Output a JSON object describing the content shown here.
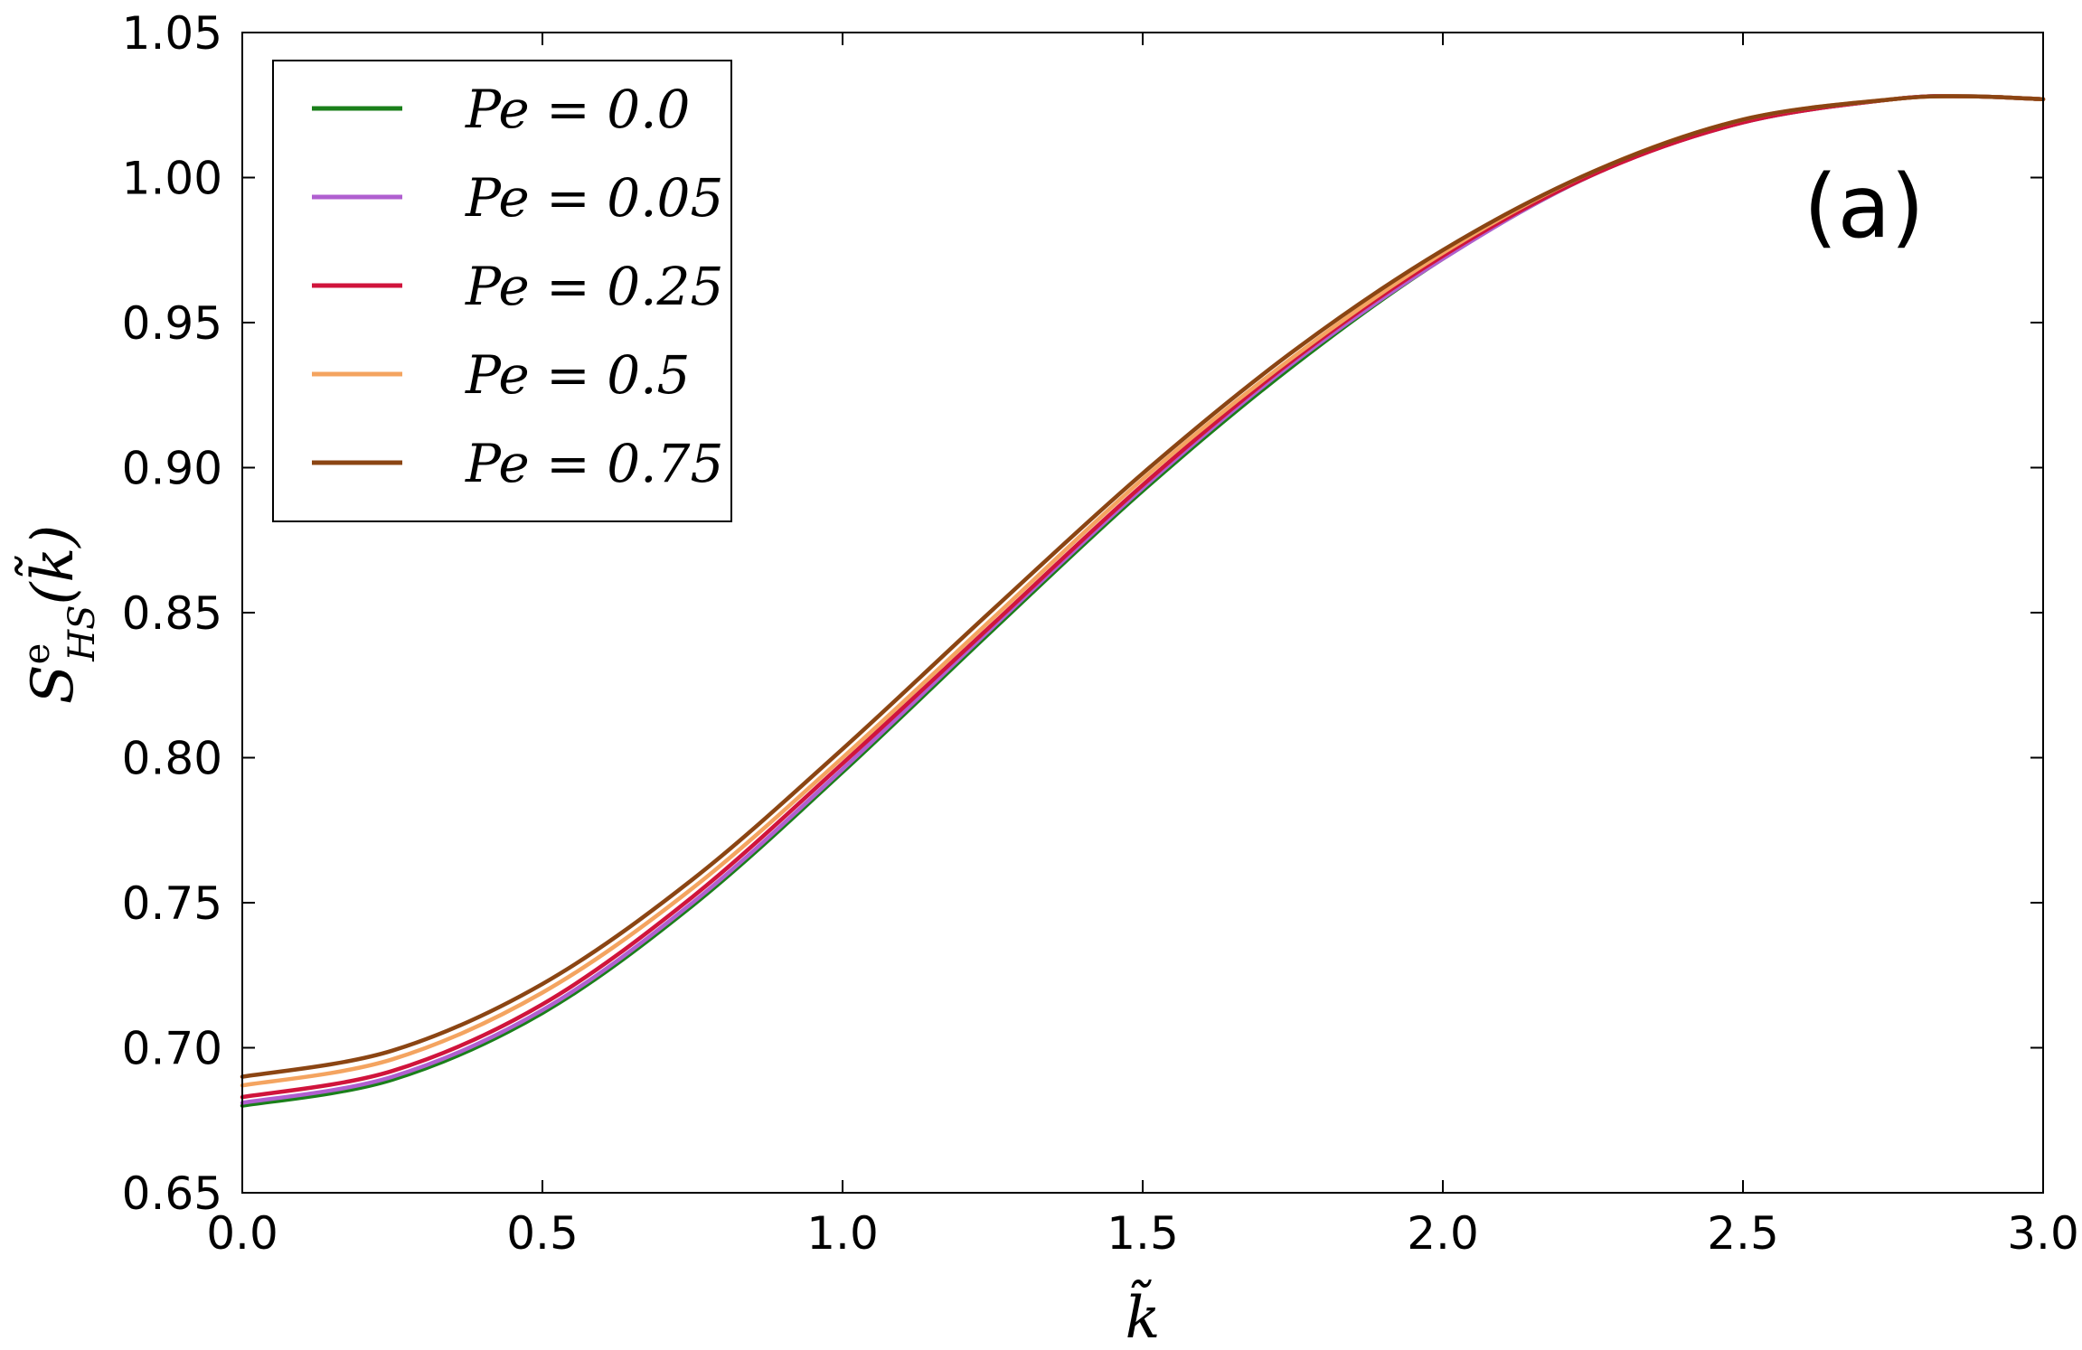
{
  "chart_data": {
    "type": "line",
    "title": "",
    "xlabel": "k̃",
    "ylabel": "S",
    "ylabel_sup": "e",
    "ylabel_sub": "HS",
    "ylabel_arg": "(k̃)",
    "panel_label": "(a)",
    "xlim": [
      0.0,
      3.0
    ],
    "ylim": [
      0.65,
      1.05
    ],
    "xticks": [
      "0.0",
      "0.5",
      "1.0",
      "1.5",
      "2.0",
      "2.5",
      "3.0"
    ],
    "yticks": [
      "0.65",
      "0.70",
      "0.75",
      "0.80",
      "0.85",
      "0.90",
      "0.95",
      "1.00",
      "1.05"
    ],
    "grid": false,
    "legend_position": "top-left",
    "x": [
      0.0,
      0.25,
      0.5,
      0.75,
      1.0,
      1.25,
      1.5,
      1.75,
      2.0,
      2.25,
      2.5,
      2.75,
      2.875,
      3.0
    ],
    "series": [
      {
        "name": "Pe = 0.0",
        "color": "#1a7f1a",
        "values": [
          0.68,
          0.689,
          0.712,
          0.749,
          0.795,
          0.844,
          0.892,
          0.935,
          0.972,
          1.001,
          1.019,
          1.027,
          1.028,
          1.027
        ]
      },
      {
        "name": "Pe = 0.05",
        "color": "#b05fd0",
        "values": [
          0.681,
          0.69,
          0.713,
          0.75,
          0.796,
          0.845,
          0.893,
          0.936,
          0.972,
          1.001,
          1.019,
          1.027,
          1.028,
          1.027
        ]
      },
      {
        "name": "Pe = 0.25",
        "color": "#d0143c",
        "values": [
          0.683,
          0.692,
          0.715,
          0.752,
          0.798,
          0.846,
          0.894,
          0.937,
          0.973,
          1.001,
          1.019,
          1.027,
          1.028,
          1.027
        ]
      },
      {
        "name": "Pe = 0.5",
        "color": "#f4a460",
        "values": [
          0.687,
          0.696,
          0.719,
          0.755,
          0.8,
          0.848,
          0.896,
          0.938,
          0.974,
          1.002,
          1.02,
          1.027,
          1.028,
          1.027
        ]
      },
      {
        "name": "Pe = 0.75",
        "color": "#8b4513",
        "values": [
          0.69,
          0.699,
          0.722,
          0.758,
          0.803,
          0.851,
          0.898,
          0.94,
          0.975,
          1.002,
          1.02,
          1.027,
          1.028,
          1.027
        ]
      }
    ]
  }
}
